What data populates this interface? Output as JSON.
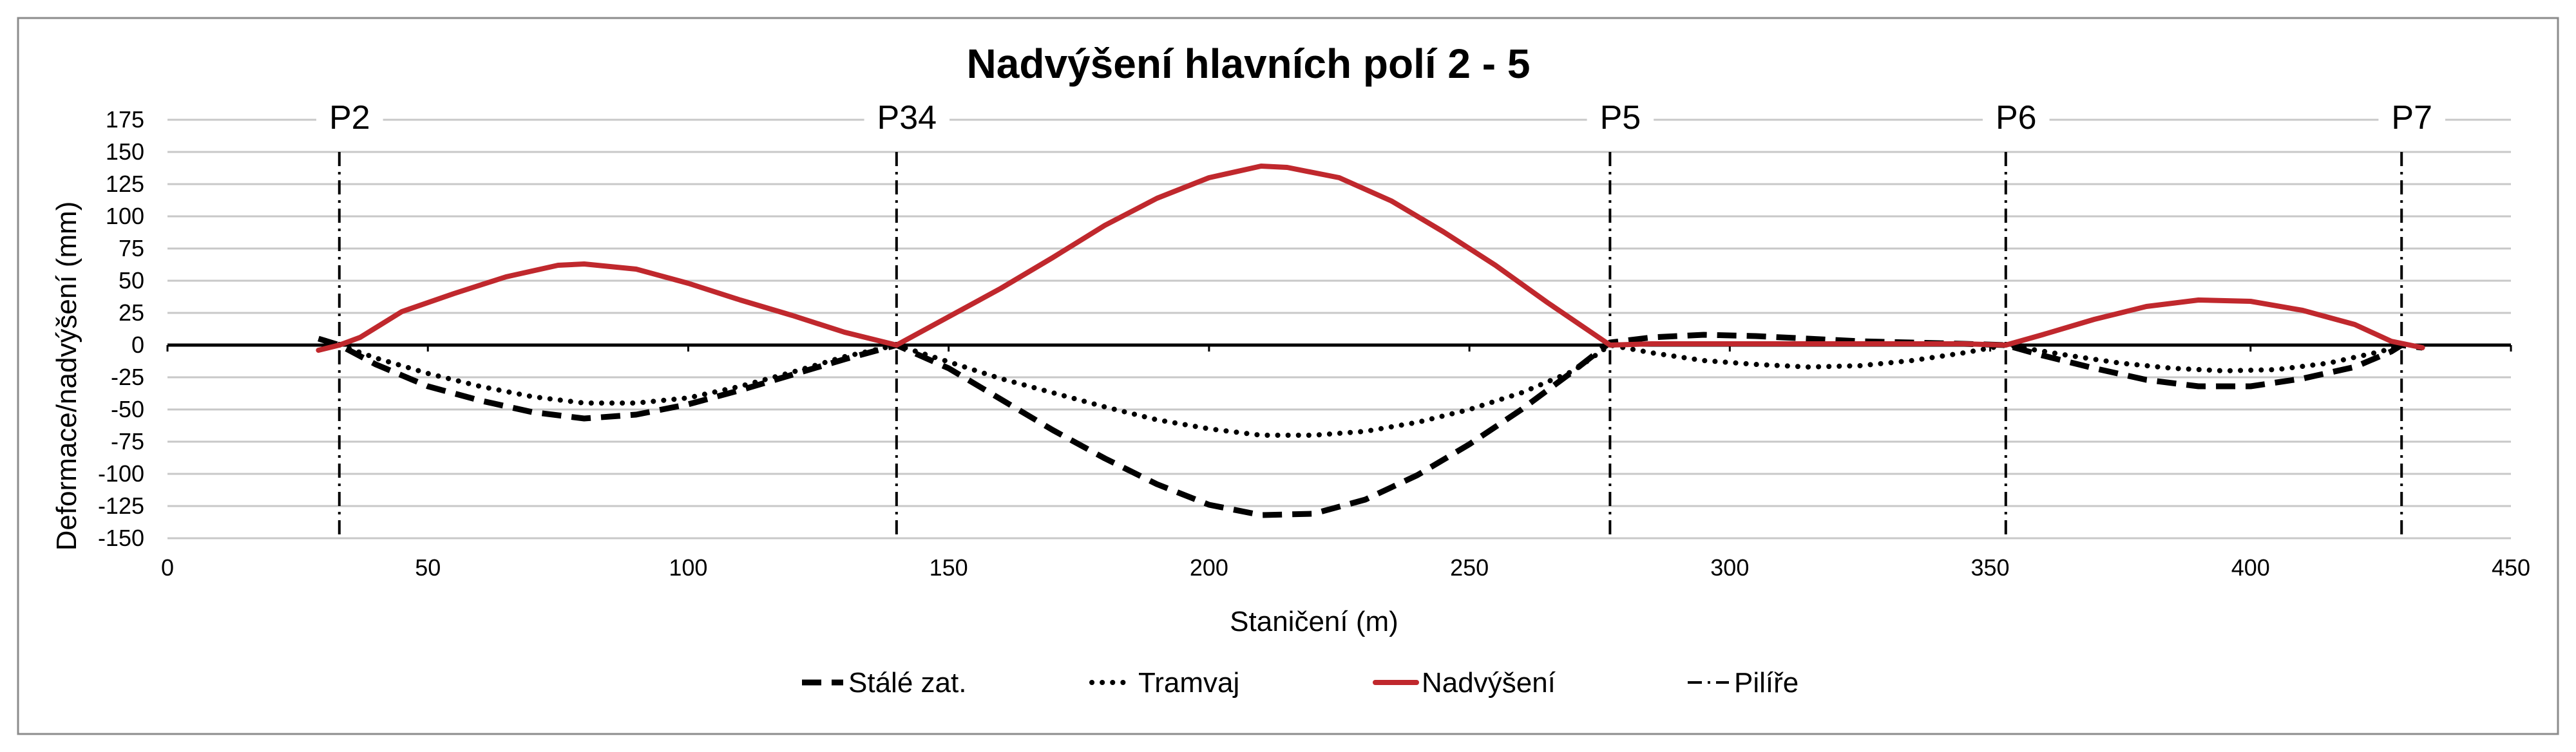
{
  "chart_data": {
    "type": "line",
    "title": "Nadvýšení hlavních polí 2 - 5",
    "xlabel": "Staničení (m)",
    "ylabel": "Deformace/nadvýšení (mm)",
    "xlim": [
      0,
      450
    ],
    "ylim": [
      -150,
      175
    ],
    "x_ticks": [
      "0",
      "50",
      "100",
      "150",
      "200",
      "250",
      "300",
      "350",
      "400",
      "450"
    ],
    "y_ticks": [
      "175",
      "150",
      "125",
      "100",
      "75",
      "50",
      "25",
      "0",
      "-25",
      "-50",
      "-75",
      "-100",
      "-125",
      "-150"
    ],
    "grid": "horizontal",
    "legend_position": "bottom",
    "piers": [
      {
        "label": "P2",
        "x": 33
      },
      {
        "label": "P34",
        "x": 140
      },
      {
        "label": "P5",
        "x": 277
      },
      {
        "label": "P6",
        "x": 353
      },
      {
        "label": "P7",
        "x": 429
      }
    ],
    "series": [
      {
        "name": "Stálé zat.",
        "color": "#000000",
        "style": "dashed",
        "points": [
          [
            29,
            5
          ],
          [
            33,
            0
          ],
          [
            40,
            -15
          ],
          [
            50,
            -32
          ],
          [
            60,
            -43
          ],
          [
            70,
            -52
          ],
          [
            80,
            -57
          ],
          [
            90,
            -54
          ],
          [
            100,
            -46
          ],
          [
            110,
            -35
          ],
          [
            120,
            -23
          ],
          [
            130,
            -11
          ],
          [
            140,
            0
          ],
          [
            150,
            -18
          ],
          [
            160,
            -42
          ],
          [
            170,
            -66
          ],
          [
            180,
            -88
          ],
          [
            190,
            -108
          ],
          [
            200,
            -124
          ],
          [
            210,
            -132
          ],
          [
            220,
            -131
          ],
          [
            230,
            -120
          ],
          [
            240,
            -101
          ],
          [
            250,
            -77
          ],
          [
            260,
            -50
          ],
          [
            270,
            -20
          ],
          [
            277,
            2
          ],
          [
            285,
            6
          ],
          [
            295,
            8
          ],
          [
            305,
            7
          ],
          [
            315,
            5
          ],
          [
            325,
            3
          ],
          [
            335,
            2
          ],
          [
            345,
            1
          ],
          [
            353,
            0
          ],
          [
            360,
            -8
          ],
          [
            370,
            -18
          ],
          [
            380,
            -27
          ],
          [
            390,
            -32
          ],
          [
            400,
            -32
          ],
          [
            410,
            -26
          ],
          [
            420,
            -17
          ],
          [
            427,
            -5
          ],
          [
            429,
            0
          ],
          [
            433,
            -2
          ]
        ]
      },
      {
        "name": "Tramvaj",
        "color": "#000000",
        "style": "dotted",
        "points": [
          [
            33,
            0
          ],
          [
            40,
            -10
          ],
          [
            50,
            -22
          ],
          [
            60,
            -32
          ],
          [
            70,
            -40
          ],
          [
            80,
            -45
          ],
          [
            90,
            -45
          ],
          [
            100,
            -41
          ],
          [
            110,
            -32
          ],
          [
            120,
            -21
          ],
          [
            130,
            -9
          ],
          [
            140,
            0
          ],
          [
            150,
            -13
          ],
          [
            160,
            -26
          ],
          [
            170,
            -37
          ],
          [
            180,
            -48
          ],
          [
            190,
            -58
          ],
          [
            200,
            -65
          ],
          [
            210,
            -70
          ],
          [
            220,
            -70
          ],
          [
            230,
            -67
          ],
          [
            240,
            -60
          ],
          [
            250,
            -50
          ],
          [
            260,
            -37
          ],
          [
            270,
            -20
          ],
          [
            277,
            0
          ],
          [
            285,
            -6
          ],
          [
            295,
            -12
          ],
          [
            305,
            -15
          ],
          [
            315,
            -17
          ],
          [
            325,
            -16
          ],
          [
            335,
            -12
          ],
          [
            345,
            -6
          ],
          [
            353,
            0
          ],
          [
            365,
            -8
          ],
          [
            375,
            -14
          ],
          [
            385,
            -18
          ],
          [
            395,
            -20
          ],
          [
            405,
            -19
          ],
          [
            415,
            -14
          ],
          [
            425,
            -5
          ],
          [
            429,
            0
          ]
        ]
      },
      {
        "name": "Nadvýšení",
        "color": "#c0282d",
        "style": "solid",
        "points": [
          [
            29,
            -4
          ],
          [
            33,
            0
          ],
          [
            37,
            6
          ],
          [
            45,
            26
          ],
          [
            55,
            40
          ],
          [
            65,
            53
          ],
          [
            75,
            62
          ],
          [
            80,
            63
          ],
          [
            90,
            59
          ],
          [
            100,
            48
          ],
          [
            110,
            35
          ],
          [
            120,
            23
          ],
          [
            130,
            10
          ],
          [
            140,
            0
          ],
          [
            150,
            22
          ],
          [
            160,
            44
          ],
          [
            170,
            68
          ],
          [
            180,
            93
          ],
          [
            190,
            114
          ],
          [
            200,
            130
          ],
          [
            210,
            139
          ],
          [
            215,
            138
          ],
          [
            225,
            130
          ],
          [
            235,
            112
          ],
          [
            245,
            88
          ],
          [
            255,
            62
          ],
          [
            265,
            33
          ],
          [
            277,
            0
          ],
          [
            285,
            1
          ],
          [
            295,
            1
          ],
          [
            305,
            1
          ],
          [
            315,
            1
          ],
          [
            325,
            1
          ],
          [
            335,
            1
          ],
          [
            345,
            1
          ],
          [
            353,
            0
          ],
          [
            360,
            8
          ],
          [
            370,
            20
          ],
          [
            380,
            30
          ],
          [
            390,
            35
          ],
          [
            400,
            34
          ],
          [
            410,
            27
          ],
          [
            420,
            16
          ],
          [
            427,
            3
          ],
          [
            433,
            -2
          ]
        ]
      }
    ],
    "pier_series": {
      "name": "Pilíře",
      "style": "dash-dot",
      "color": "#000000"
    }
  }
}
